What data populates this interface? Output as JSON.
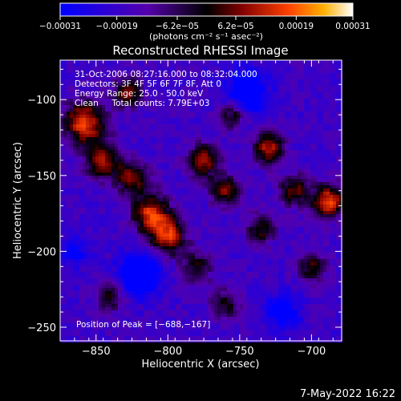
{
  "chart_data": {
    "type": "heatmap",
    "title": "Reconstructed RHESSI Image",
    "xlabel": "Heliocentric X (arcsec)",
    "ylabel": "Heliocentric Y (arcsec)",
    "xlim": [
      -875,
      -679
    ],
    "ylim": [
      -259,
      -74
    ],
    "x_ticks": [
      -850,
      -800,
      -750,
      -700
    ],
    "x_tick_labels": [
      "−850",
      "−800",
      "−750",
      "−700"
    ],
    "y_ticks": [
      -100,
      -150,
      -200,
      -250
    ],
    "y_tick_labels": [
      "−100",
      "−150",
      "−200",
      "−250"
    ],
    "colorbar": {
      "min": -0.00031,
      "max": 0.00031,
      "ticks": [
        -0.00031,
        -0.00019,
        -6.2e-05,
        6.2e-05,
        0.00019,
        0.00031
      ],
      "tick_labels": [
        "−0.00031",
        "−0.00019",
        "−6.2e−05",
        "6.2e−05",
        "0.00019",
        "0.00031"
      ],
      "unit_label": "(photons cm⁻² s⁻¹ asec⁻²)",
      "colors": [
        "#0000ff",
        "#5500aa",
        "#000000",
        "#800000",
        "#ff4000",
        "#ffb000",
        "#ffffff"
      ]
    },
    "annotations": {
      "time": "31-Oct-2006 08:27:16.000 to 08:32:04.000",
      "detectors": "Detectors: 3F 4F 5F 6F 7F 8F, Att 0",
      "energy": "Energy Range: 25.0 - 50.0 keV",
      "clean": "Clean     Total counts: 7.79E+03",
      "peak": "Position of Peak = [−688,−167]"
    },
    "peak": [
      -688,
      -167
    ],
    "total_counts": 7790,
    "energy_range_kev": [
      25.0,
      50.0
    ],
    "grid": false
  },
  "footer": {
    "timestamp": "7-May-2022 16:22"
  }
}
